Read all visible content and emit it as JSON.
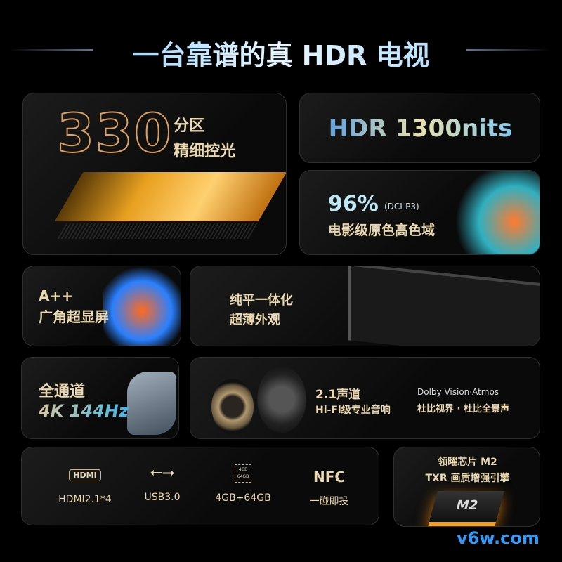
{
  "title": "一台靠谱的真 HDR 电视",
  "zones": {
    "number": "330",
    "line1": "分区",
    "line2": "精细控光"
  },
  "hdr": {
    "text": "HDR 1300nits"
  },
  "gamut": {
    "percent": "96%",
    "standard": "(DCI-P3)",
    "label": "电影级原色高色域"
  },
  "screen": {
    "line1": "A++",
    "line2": "广角超显屏"
  },
  "design": {
    "line1": "纯平一体化",
    "line2": "超薄外观"
  },
  "refresh": {
    "line1": "全通道",
    "line2": "4K 144Hz"
  },
  "audio": {
    "line1": "2.1声道",
    "line2": "Hi-Fi级专业音响",
    "dolby_logo": "Dolby Vision·Atmos",
    "dolby_label": "杜比视界 · 杜比全景声"
  },
  "ports": [
    {
      "icon": "hdmi-icon",
      "icon_text": "HDMI",
      "label": "HDMI2.1*4"
    },
    {
      "icon": "usb-icon",
      "label": "USB3.0"
    },
    {
      "icon": "chip-icon",
      "icon_text": "4GB 64GB",
      "label": "4GB+64GB"
    },
    {
      "icon": "nfc-icon",
      "icon_text": "NFC",
      "label": "一碰即投"
    }
  ],
  "chip": {
    "line1": "领曜芯片 M2",
    "line2": "TXR 画质增强引擎",
    "chip_text": "M2"
  },
  "watermark": "v6w.com",
  "colors": {
    "gold": "#ead8b0",
    "accent_blue": "#4aa8ff",
    "watermark": "#2f9bff"
  }
}
